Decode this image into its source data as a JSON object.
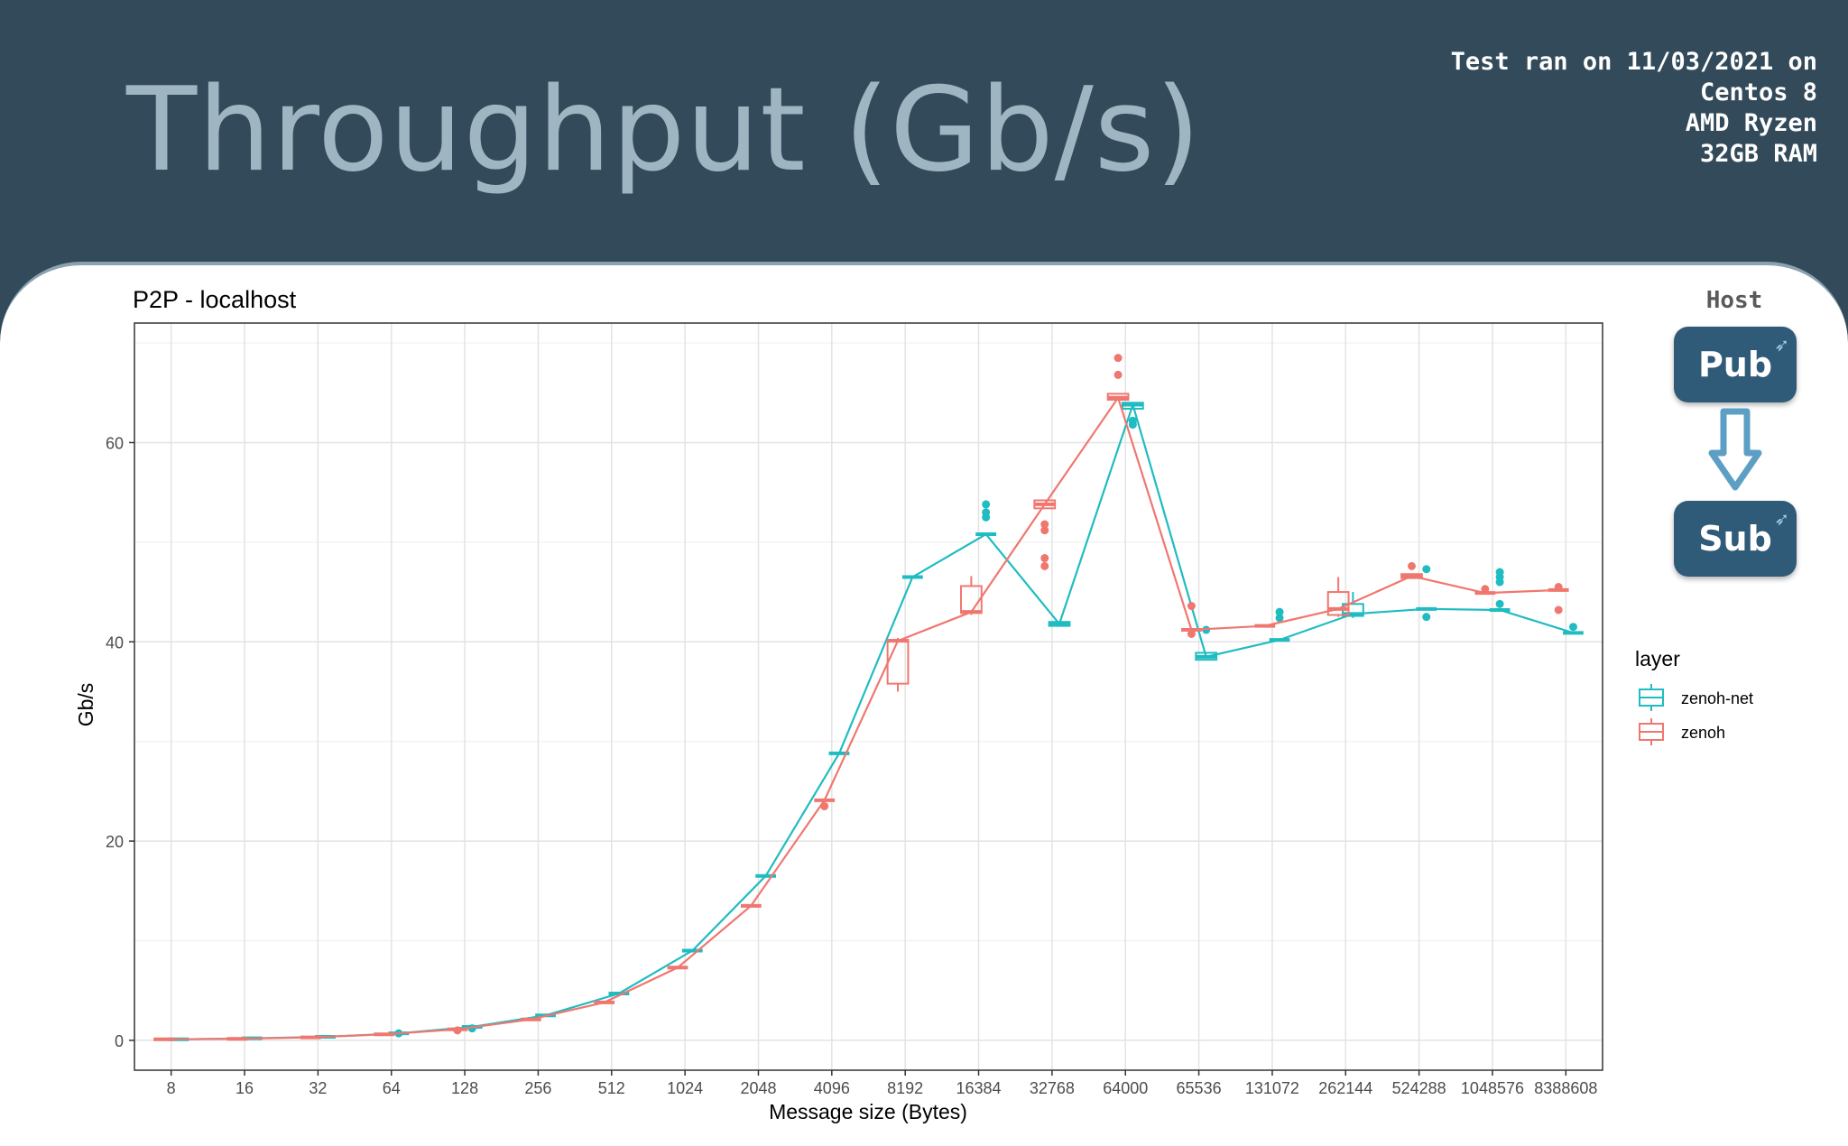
{
  "header": {
    "title": "Throughput (Gb/s)",
    "test_info": [
      "Test ran on 11/03/2021 on",
      "Centos 8",
      "AMD Ryzen",
      "32GB RAM"
    ]
  },
  "diagram": {
    "host_label": "Host",
    "pub_label": "Pub",
    "sub_label": "Sub",
    "node_color": "#2f5a78",
    "arrow_color": "#5d9fc4"
  },
  "chart_data": {
    "type": "box",
    "title": "P2P - localhost",
    "xlabel": "Message size (Bytes)",
    "ylabel": "Gb/s",
    "ylim": [
      -3,
      72
    ],
    "yticks": [
      0,
      20,
      40,
      60
    ],
    "grid": true,
    "categories": [
      "8",
      "16",
      "32",
      "64",
      "128",
      "256",
      "512",
      "1024",
      "2048",
      "4096",
      "8192",
      "16384",
      "32768",
      "64000",
      "65536",
      "131072",
      "262144",
      "524288",
      "1048576",
      "8388608"
    ],
    "legend": {
      "title": "layer",
      "position": "right"
    },
    "series": [
      {
        "name": "zenoh-net",
        "color": "#1fbcc1",
        "offset": 0.1,
        "medians": [
          0.1,
          0.2,
          0.35,
          0.7,
          1.35,
          2.5,
          4.7,
          9.0,
          16.5,
          28.8,
          46.5,
          50.8,
          41.8,
          63.8,
          38.5,
          40.2,
          42.8,
          43.3,
          43.2,
          40.9
        ],
        "boxes": [
          {
            "i": 12,
            "q1": 41.6,
            "q3": 42.0
          },
          {
            "i": 13,
            "q1": 63.4,
            "q3": 64.0
          },
          {
            "i": 14,
            "q1": 38.2,
            "q3": 38.9
          },
          {
            "i": 16,
            "q1": 42.6,
            "q3": 43.8,
            "whiskers": [
              42.4,
              45.0
            ]
          }
        ],
        "outliers": [
          {
            "i": 3,
            "v": 0.7
          },
          {
            "i": 4,
            "v": 1.2
          },
          {
            "i": 11,
            "v": 52.5
          },
          {
            "i": 11,
            "v": 53.0
          },
          {
            "i": 11,
            "v": 53.8
          },
          {
            "i": 13,
            "v": 61.8
          },
          {
            "i": 13,
            "v": 62.2
          },
          {
            "i": 14,
            "v": 41.2
          },
          {
            "i": 15,
            "v": 42.4
          },
          {
            "i": 15,
            "v": 43.0
          },
          {
            "i": 17,
            "v": 42.5
          },
          {
            "i": 17,
            "v": 47.3
          },
          {
            "i": 18,
            "v": 43.8
          },
          {
            "i": 18,
            "v": 46.0
          },
          {
            "i": 18,
            "v": 46.5
          },
          {
            "i": 18,
            "v": 47.0
          },
          {
            "i": 19,
            "v": 41.5
          }
        ]
      },
      {
        "name": "zenoh",
        "color": "#f07770",
        "offset": -0.1,
        "medians": [
          0.1,
          0.15,
          0.3,
          0.6,
          1.1,
          2.1,
          3.8,
          7.3,
          13.5,
          24.1,
          40.1,
          43.0,
          53.8,
          64.5,
          41.2,
          41.6,
          43.3,
          46.6,
          44.9,
          45.2
        ],
        "boxes": [
          {
            "i": 10,
            "q1": 35.8,
            "q3": 40.2,
            "whiskers": [
              35.0,
              40.4
            ]
          },
          {
            "i": 11,
            "q1": 42.9,
            "q3": 45.6,
            "whiskers": [
              42.7,
              46.6
            ]
          },
          {
            "i": 12,
            "q1": 53.4,
            "q3": 54.2
          },
          {
            "i": 13,
            "q1": 64.3,
            "q3": 64.9
          },
          {
            "i": 16,
            "q1": 42.7,
            "q3": 45.0,
            "whiskers": [
              42.5,
              46.5
            ]
          },
          {
            "i": 17,
            "q1": 46.4,
            "q3": 46.8
          }
        ],
        "outliers": [
          {
            "i": 4,
            "v": 1.0
          },
          {
            "i": 9,
            "v": 23.5
          },
          {
            "i": 12,
            "v": 47.6
          },
          {
            "i": 12,
            "v": 48.4
          },
          {
            "i": 12,
            "v": 51.2
          },
          {
            "i": 12,
            "v": 51.8
          },
          {
            "i": 13,
            "v": 66.8
          },
          {
            "i": 13,
            "v": 68.5
          },
          {
            "i": 14,
            "v": 40.8
          },
          {
            "i": 14,
            "v": 43.6
          },
          {
            "i": 17,
            "v": 47.6
          },
          {
            "i": 18,
            "v": 45.3
          },
          {
            "i": 19,
            "v": 43.2
          },
          {
            "i": 19,
            "v": 45.5
          }
        ]
      }
    ]
  }
}
